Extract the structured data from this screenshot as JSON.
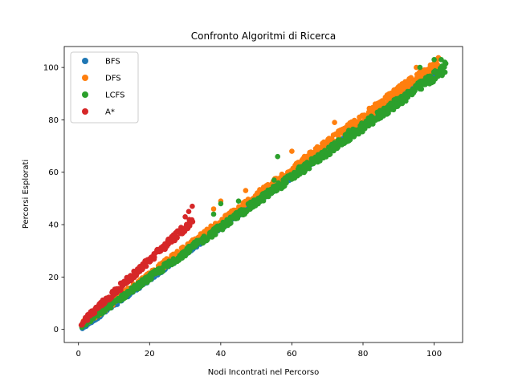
{
  "chart_data": {
    "type": "scatter",
    "title": "Confronto Algoritmi di Ricerca",
    "xlabel": "Nodi Incontrati nel Percorso",
    "ylabel": "Percorsi Esplorati",
    "xlim": [
      -4,
      108
    ],
    "ylim": [
      -5,
      108
    ],
    "xticks": [
      0,
      20,
      40,
      60,
      80,
      100
    ],
    "yticks": [
      0,
      20,
      40,
      60,
      80,
      100
    ],
    "grid": false,
    "legend_position": "top-left",
    "series": [
      {
        "name": "BFS",
        "color": "#1f77b4",
        "bands": [
          {
            "x": [
              1,
              101
            ],
            "slope": 0.985,
            "offset": -0.5,
            "width": 2.2
          },
          {
            "x": [
              40,
              48
            ],
            "slope": 1.0,
            "offset": 0.0,
            "width": 1.2
          }
        ],
        "points": [
          [
            41,
            41
          ],
          [
            43,
            42
          ],
          [
            44,
            43
          ],
          [
            45,
            44
          ],
          [
            46,
            45
          ]
        ]
      },
      {
        "name": "DFS",
        "color": "#ff7f0e",
        "bands": [
          {
            "x": [
              1,
              101
            ],
            "slope": 1.0,
            "offset": 0.8,
            "width": 3.8
          }
        ],
        "points": [
          [
            8,
            12
          ],
          [
            15,
            19
          ],
          [
            38,
            46
          ],
          [
            40,
            49
          ],
          [
            47,
            53
          ],
          [
            60,
            68
          ],
          [
            72,
            79
          ],
          [
            95,
            100
          ],
          [
            101,
            101
          ]
        ]
      },
      {
        "name": "LCFS",
        "color": "#2ca02c",
        "bands": [
          {
            "x": [
              1,
              103
            ],
            "slope": 0.96,
            "offset": 0.6,
            "width": 3.6
          }
        ],
        "points": [
          [
            34,
            34
          ],
          [
            38,
            44
          ],
          [
            40,
            48
          ],
          [
            45,
            49
          ],
          [
            55,
            57
          ],
          [
            56,
            66
          ],
          [
            62,
            62
          ],
          [
            76,
            76
          ],
          [
            100,
            103
          ],
          [
            102,
            103
          ],
          [
            103,
            102
          ],
          [
            96,
            100
          ]
        ]
      },
      {
        "name": "A*",
        "color": "#d62728",
        "bands": [
          {
            "x": [
              1,
              32
            ],
            "slope": 1.25,
            "offset": 1.5,
            "width": 4.0
          }
        ],
        "points": [
          [
            32,
            47
          ],
          [
            31,
            45
          ],
          [
            30,
            43
          ]
        ]
      }
    ]
  }
}
